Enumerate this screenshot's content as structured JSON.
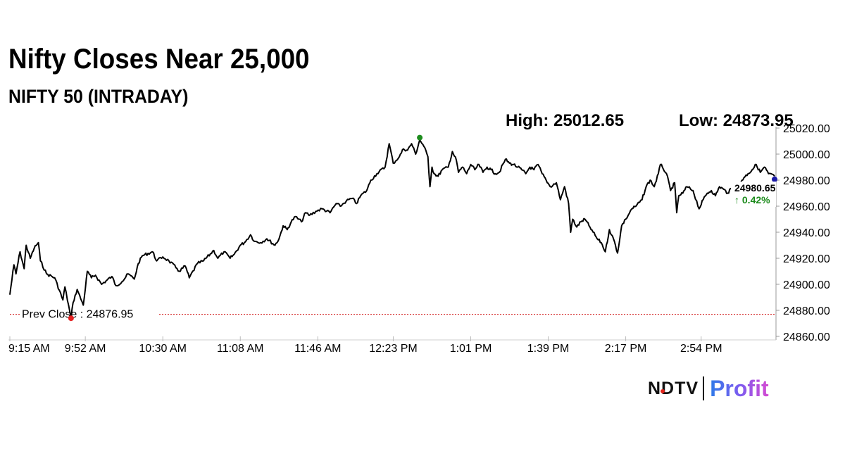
{
  "header": {
    "title": "Nifty Closes Near 25,000",
    "subtitle": "NIFTY 50 (INTRADAY)",
    "high_text": "High: 25012.65",
    "low_text": "Low: 24873.95"
  },
  "brand": {
    "logo_text": "NDTV",
    "product": "Profit"
  },
  "chart_data": {
    "type": "line",
    "title": "Nifty Closes Near 25,000",
    "subtitle": "NIFTY 50 (INTRADAY)",
    "xlabel": "",
    "ylabel": "",
    "grid": false,
    "y_axis_side": "right",
    "ylim": [
      24860,
      25025
    ],
    "y_ticks": [
      24860.0,
      24880.0,
      24900.0,
      24920.0,
      24940.0,
      24960.0,
      24980.0,
      25000.0,
      25020.0
    ],
    "y_tick_labels": [
      "24860.00",
      "24880.00",
      "24900.00",
      "24920.00",
      "24940.00",
      "24960.00",
      "24980.00",
      "25000.00",
      "25020.00"
    ],
    "x_range_minutes": [
      0,
      375
    ],
    "x_ticks": [
      0,
      37,
      75,
      113,
      151,
      188,
      226,
      264,
      302,
      339
    ],
    "x_tick_labels": [
      "9:15 AM",
      "9:52 AM",
      "10:30 AM",
      "11:08 AM",
      "11:46 AM",
      "12:23 PM",
      "1:01 PM",
      "1:39 PM",
      "2:17 PM",
      "2:54 PM"
    ],
    "prev_close": {
      "label": "Prev Close : 24876.95",
      "value": 24876.95,
      "color": "#cc0000"
    },
    "last": {
      "value_label": "24980.65",
      "change_label": "↑ 0.42%",
      "value": 24980.65,
      "change_color": "#1a8a1a"
    },
    "markers": [
      {
        "name": "low",
        "x": 30,
        "y": 24873.95,
        "color": "#e52222"
      },
      {
        "name": "high",
        "x": 201,
        "y": 25012.65,
        "color": "#1e8c1e"
      },
      {
        "name": "close",
        "x": 375,
        "y": 24980.65,
        "color": "#1a1aa8"
      }
    ],
    "series": [
      {
        "color": "#000000",
        "x": [
          0,
          2,
          3,
          5,
          7,
          8,
          10,
          12,
          14,
          15,
          18,
          22,
          26,
          27,
          30,
          31,
          33,
          36,
          38,
          40,
          42,
          45,
          50,
          52,
          55,
          58,
          61,
          63,
          65,
          70,
          72,
          75,
          78,
          82,
          83,
          86,
          88,
          92,
          95,
          100,
          102,
          105,
          108,
          110,
          113,
          115,
          118,
          120,
          123,
          126,
          130,
          132,
          134,
          136,
          138,
          140,
          143,
          145,
          147,
          150,
          153,
          157,
          160,
          162,
          165,
          168,
          170,
          172,
          175,
          177,
          180,
          184,
          186,
          188,
          191,
          193,
          195,
          197,
          199,
          201,
          203,
          205,
          206,
          207,
          208,
          210,
          212,
          215,
          217,
          219,
          220,
          222,
          224,
          226,
          228,
          230,
          232,
          234,
          236,
          238,
          240,
          243,
          245,
          247,
          249,
          251,
          253,
          255,
          257,
          259,
          261,
          263,
          265,
          268,
          270,
          272,
          274,
          275,
          276,
          278,
          280,
          282,
          284,
          286,
          288,
          290,
          292,
          294,
          295,
          296,
          298,
          300,
          302,
          305,
          307,
          310,
          312,
          314,
          316,
          318,
          319,
          320,
          322,
          324,
          326,
          327,
          328,
          330,
          332,
          335,
          338,
          340,
          342,
          344,
          346,
          348,
          350,
          352,
          354,
          356,
          358,
          360,
          362,
          364,
          366,
          368,
          370,
          372,
          375
        ],
        "y": [
          24892,
          24915,
          24908,
          24925,
          24912,
          24930,
          24920,
          24928,
          24932,
          24918,
          24908,
          24905,
          24888,
          24898,
          24874,
          24886,
          24896,
          24884,
          24910,
          24905,
          24907,
          24900,
          24906,
          24899,
          24902,
          24908,
          24904,
          24916,
          24922,
          24925,
          24918,
          24921,
          24918,
          24912,
          24910,
          24914,
          24905,
          24916,
          24918,
          24926,
          24920,
          24925,
          24920,
          24923,
          24930,
          24932,
          24938,
          24933,
          24932,
          24935,
          24930,
          24935,
          24945,
          24942,
          24948,
          24952,
          24948,
          24955,
          24953,
          24956,
          24958,
          24955,
          24962,
          24960,
          24964,
          24966,
          24962,
          24968,
          24972,
          24980,
          24985,
          24990,
          25008,
          24993,
          24998,
          25004,
          25003,
          25008,
          25000,
          25011,
          25006,
          24998,
          24975,
          24990,
          24985,
          24983,
          24988,
          24990,
          25002,
          24995,
          24986,
          24990,
          24985,
          24992,
          24988,
          24992,
          24986,
          24990,
          24988,
          24985,
          24986,
          24996,
          24993,
          24992,
          24990,
          24988,
          24985,
          24990,
          24988,
          24992,
          24985,
          24980,
          24975,
          24978,
          24965,
          24975,
          24962,
          24940,
          24950,
          24944,
          24948,
          24950,
          24945,
          24940,
          24935,
          24932,
          24925,
          24942,
          24938,
          24935,
          24924,
          24945,
          24950,
          24958,
          24960,
          24965,
          24975,
          24980,
          24975,
          24985,
          24992,
          24990,
          24985,
          24972,
          24978,
          24955,
          24968,
          24970,
          24975,
          24972,
          24958,
          24965,
          24970,
          24972,
          24968,
          24975,
          24973,
          24970,
          24974,
          24972,
          24978,
          24982,
          24985,
          24988,
          24992,
          24986,
          24990,
          24985,
          24983
        ]
      }
    ]
  }
}
